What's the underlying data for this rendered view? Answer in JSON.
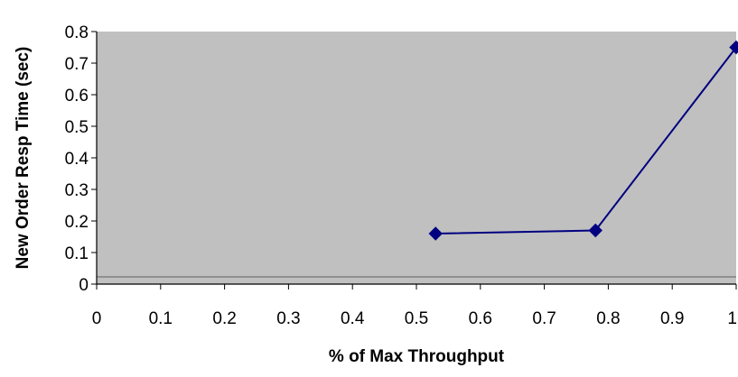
{
  "chart_data": {
    "type": "line",
    "title": "",
    "xlabel": "% of Max Throughput",
    "ylabel": "New Order Resp Time (sec)",
    "xlim": [
      0,
      1
    ],
    "ylim": [
      0,
      0.8
    ],
    "x_ticks": [
      "0",
      "0.1",
      "0.2",
      "0.3",
      "0.4",
      "0.5",
      "0.6",
      "0.7",
      "0.8",
      "0.9",
      "1"
    ],
    "y_ticks": [
      "0",
      "0.1",
      "0.2",
      "0.3",
      "0.4",
      "0.5",
      "0.6",
      "0.7",
      "0.8"
    ],
    "grid": false,
    "legend": "none",
    "series": [
      {
        "x": [
          0.53,
          0.78,
          1.0
        ],
        "y": [
          0.16,
          0.17,
          0.75
        ],
        "marker": "diamond"
      }
    ]
  },
  "colors": {
    "plot_background": "#c0c0c0",
    "series_line": "#000080",
    "series_marker": "#000080",
    "axis": "#000000"
  }
}
